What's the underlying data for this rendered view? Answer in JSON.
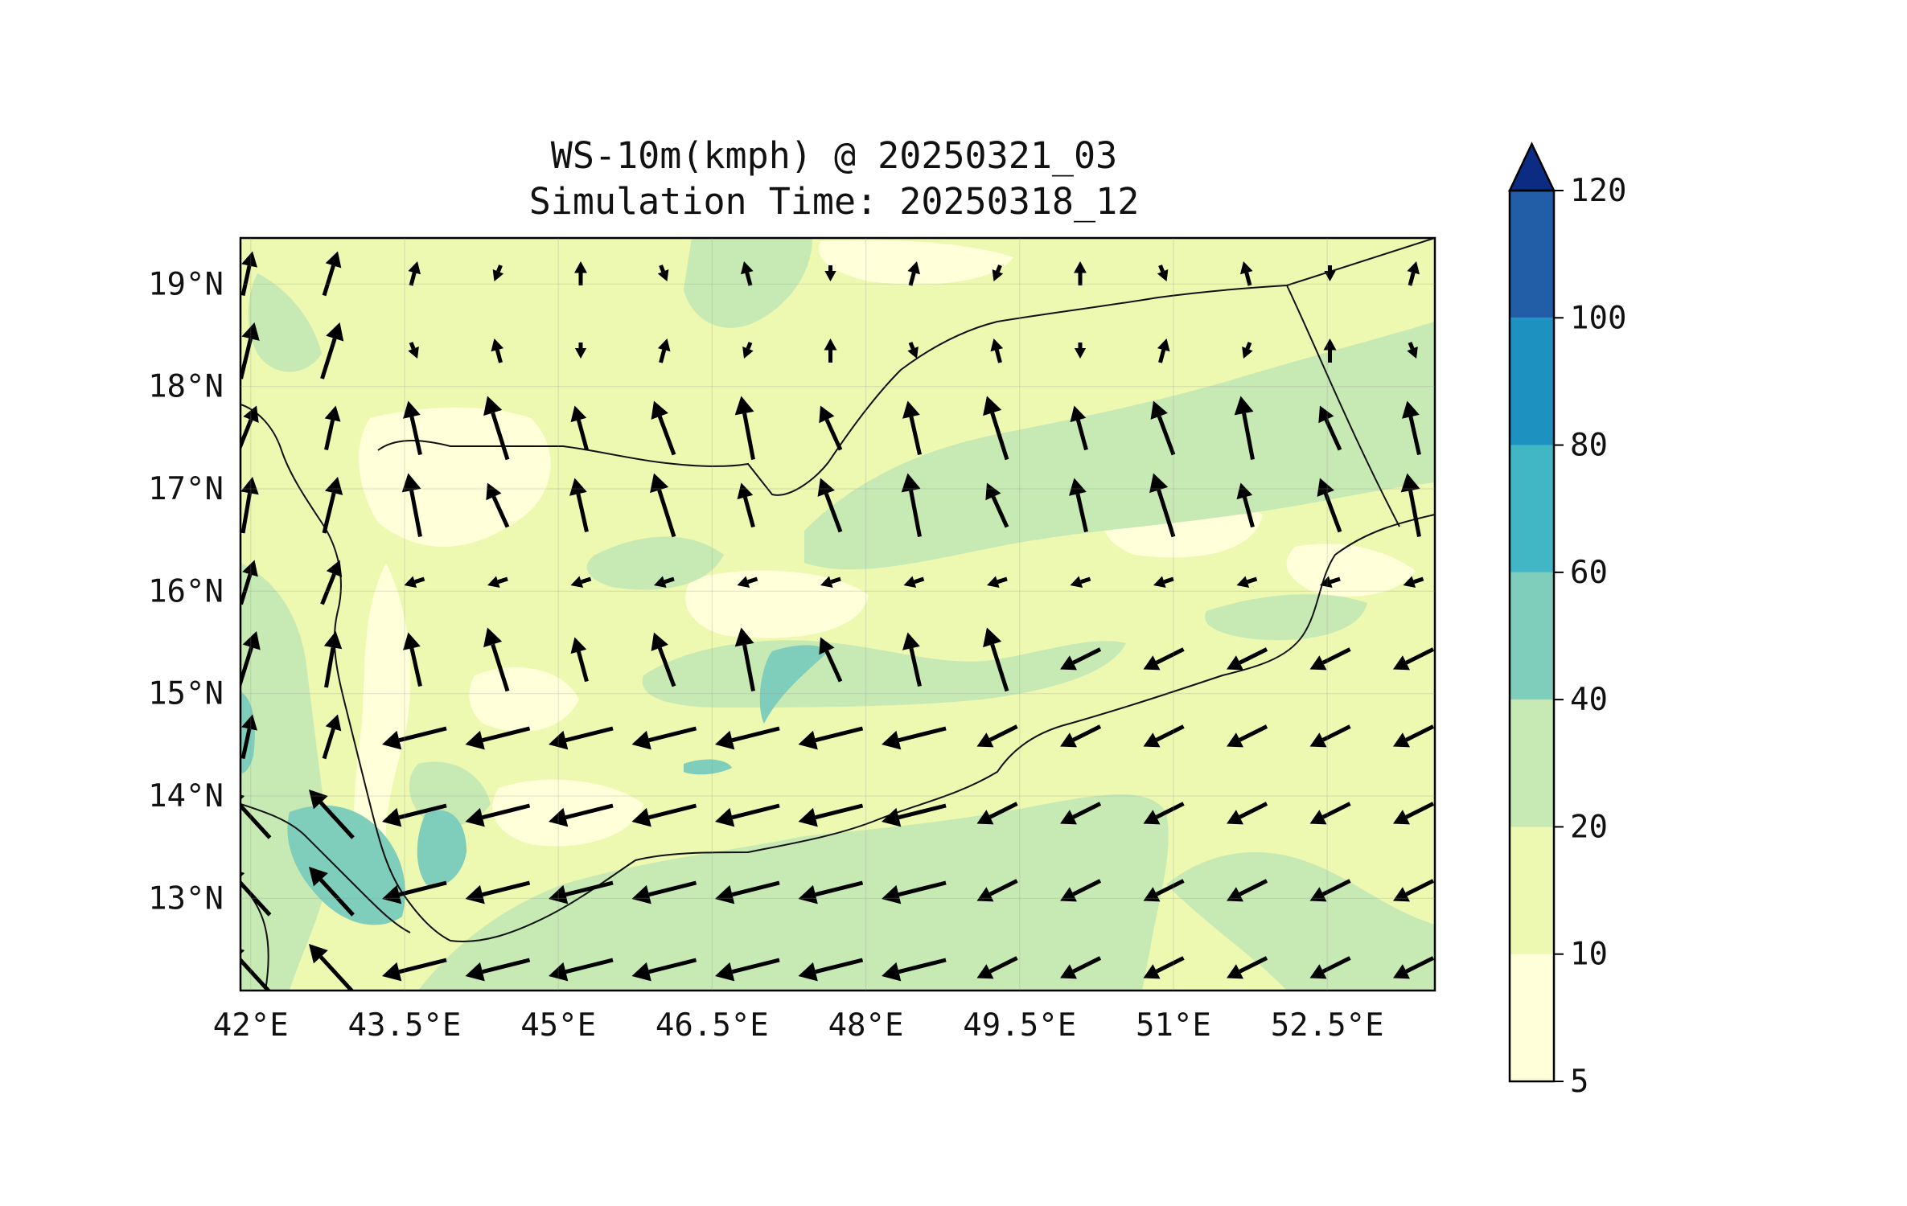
{
  "title": {
    "line1": "WS-10m(kmph) @ 20250321_03",
    "line2": "Simulation Time: 20250318_12"
  },
  "map": {
    "lon_range": [
      41.9,
      53.55
    ],
    "lat_range": [
      12.1,
      19.45
    ],
    "lon_ticks": [
      {
        "value": 42.0,
        "label": "42°E"
      },
      {
        "value": 43.5,
        "label": "43.5°E"
      },
      {
        "value": 45.0,
        "label": "45°E"
      },
      {
        "value": 46.5,
        "label": "46.5°E"
      },
      {
        "value": 48.0,
        "label": "48°E"
      },
      {
        "value": 49.5,
        "label": "49.5°E"
      },
      {
        "value": 51.0,
        "label": "51°E"
      },
      {
        "value": 52.5,
        "label": "52.5°E"
      }
    ],
    "lat_ticks": [
      {
        "value": 13,
        "label": "13°N"
      },
      {
        "value": 14,
        "label": "14°N"
      },
      {
        "value": 15,
        "label": "15°N"
      },
      {
        "value": 16,
        "label": "16°N"
      },
      {
        "value": 17,
        "label": "17°N"
      },
      {
        "value": 18,
        "label": "18°N"
      },
      {
        "value": 19,
        "label": "19°N"
      }
    ],
    "colors": {
      "5-10": "#ffffd9",
      "10-20": "#edf8b1",
      "20-40": "#c7e9b4",
      "40-60": "#7fcdbb",
      "60-80": "#41b6c4",
      "80-100": "#1d91c0",
      "100-120": "#225ea8",
      "over": "#0c2c84"
    }
  },
  "colorbar": {
    "levels": [
      5,
      10,
      20,
      40,
      60,
      80,
      100,
      120
    ],
    "colors": [
      "#ffffd9",
      "#edf8b1",
      "#c7e9b4",
      "#7fcdbb",
      "#41b6c4",
      "#1d91c0",
      "#225ea8"
    ],
    "over_color": "#0c2c84",
    "extend": "max"
  }
}
